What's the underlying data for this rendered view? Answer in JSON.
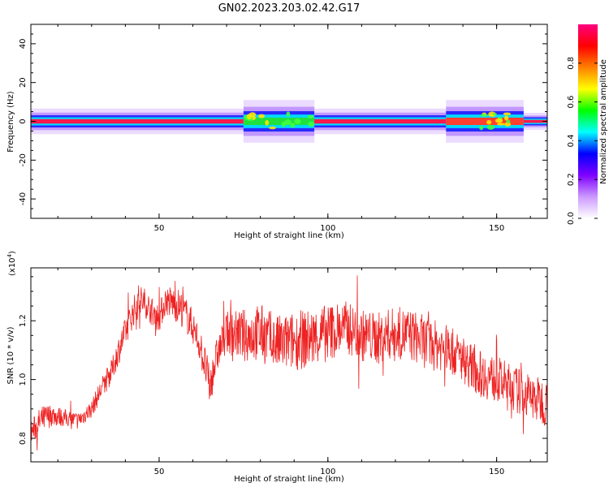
{
  "title": "GN02.2023.203.02.42.G17",
  "chart_data": [
    {
      "type": "heatmap",
      "xlabel": "Height of straight line (km)",
      "ylabel": "Frequency (Hz)",
      "xlim": [
        12,
        165
      ],
      "ylim": [
        -50,
        50
      ],
      "x_ticks": [
        50,
        100,
        150
      ],
      "y_ticks": [
        -40,
        -20,
        0,
        20,
        40
      ],
      "band_center_hz": 0,
      "colorbar": {
        "label": "Normalized spectral amplitude",
        "range": [
          0,
          1
        ],
        "ticks": [
          "0.0",
          "0.2",
          "0.4",
          "0.6",
          "0.8"
        ],
        "tick_values": [
          0.0,
          0.2,
          0.4,
          0.6,
          0.8
        ],
        "colors": [
          "#ffffff",
          "#cc99ff",
          "#7f00ff",
          "#0000ff",
          "#00ffff",
          "#00ff00",
          "#ffff00",
          "#ff8000",
          "#ff0000",
          "#ff0080"
        ]
      },
      "spectral_features": [
        {
          "x_range": [
            12,
            75
          ],
          "half_width_hz": 3,
          "peak_amplitude": 0.95
        },
        {
          "x_range": [
            75,
            96
          ],
          "half_width_hz": 5,
          "peak_amplitude": 0.55
        },
        {
          "x_range": [
            96,
            135
          ],
          "half_width_hz": 3,
          "peak_amplitude": 0.95
        },
        {
          "x_range": [
            135,
            158
          ],
          "half_width_hz": 5,
          "peak_amplitude": 0.75
        },
        {
          "x_range": [
            158,
            165
          ],
          "half_width_hz": 2,
          "peak_amplitude": 0.95
        }
      ]
    },
    {
      "type": "line",
      "xlabel": "Height of straight line (km)",
      "ylabel": "SNR (10 * v/v)",
      "y_scale_label": "(x10",
      "y_scale_exponent": "4",
      "y_scale_close": ")",
      "xlim": [
        12,
        165
      ],
      "ylim": [
        0.72,
        1.38
      ],
      "x_ticks": [
        50,
        100,
        150
      ],
      "y_ticks": [
        "0.8",
        "1.0",
        "1.2"
      ],
      "y_tick_values": [
        0.8,
        1.0,
        1.2
      ],
      "color": "#ee2222",
      "series": [
        {
          "x": [
            12,
            15,
            18,
            22,
            26,
            30,
            33,
            36,
            38,
            40,
            42,
            44,
            46,
            48,
            50,
            52,
            54,
            56,
            58,
            60,
            62,
            64,
            65,
            67,
            70,
            75,
            80,
            85,
            90,
            95,
            100,
            105,
            110,
            115,
            120,
            125,
            130,
            135,
            140,
            145,
            150,
            155,
            160,
            165
          ],
          "values": [
            0.82,
            0.86,
            0.88,
            0.87,
            0.86,
            0.9,
            0.97,
            1.03,
            1.1,
            1.16,
            1.22,
            1.27,
            1.26,
            1.23,
            1.21,
            1.27,
            1.26,
            1.25,
            1.22,
            1.18,
            1.12,
            1.03,
            0.97,
            1.08,
            1.16,
            1.15,
            1.16,
            1.12,
            1.13,
            1.14,
            1.16,
            1.18,
            1.15,
            1.14,
            1.16,
            1.15,
            1.12,
            1.11,
            1.07,
            1.02,
            1.0,
            0.97,
            0.94,
            0.92
          ],
          "noise_amplitude": [
            0.04,
            0.05,
            0.04,
            0.03,
            0.03,
            0.03,
            0.04,
            0.04,
            0.05,
            0.05,
            0.05,
            0.06,
            0.05,
            0.05,
            0.05,
            0.05,
            0.06,
            0.06,
            0.06,
            0.06,
            0.06,
            0.07,
            0.07,
            0.06,
            0.07,
            0.09,
            0.1,
            0.1,
            0.1,
            0.1,
            0.1,
            0.09,
            0.09,
            0.09,
            0.09,
            0.09,
            0.09,
            0.08,
            0.08,
            0.08,
            0.08,
            0.08,
            0.08,
            0.08
          ]
        }
      ]
    }
  ]
}
